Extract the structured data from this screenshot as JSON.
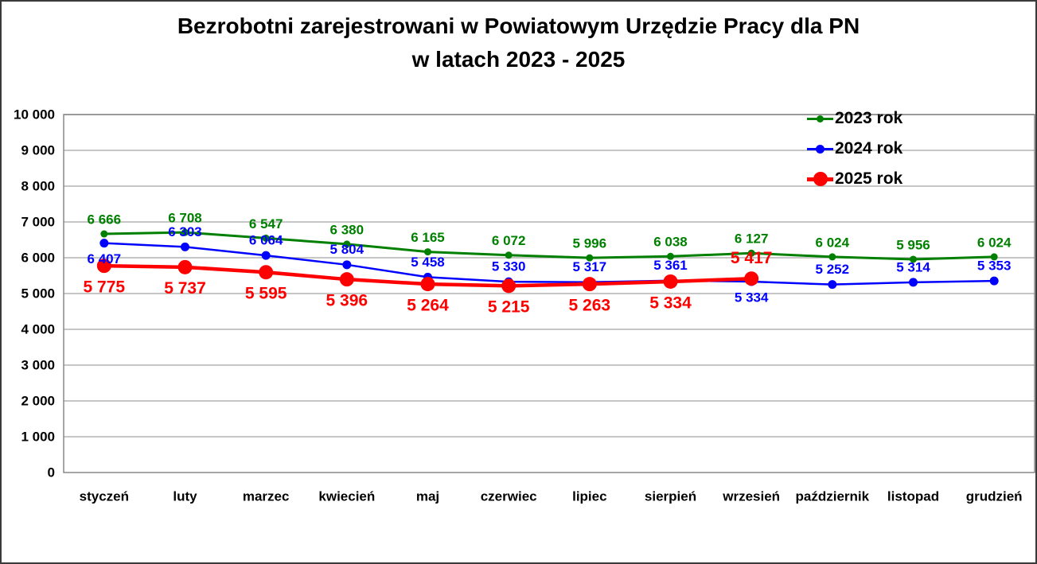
{
  "title": {
    "line1": "Bezrobotni zarejestrowani w Powiatowym Urzędzie Pracy dla PN",
    "line2": "w latach 2023 - 2025"
  },
  "colors": {
    "background": "#FFFFFF",
    "grid": "#B3B3B3",
    "plot_border": "#808080",
    "outer_border": "#3A3A3A",
    "text": "#000000"
  },
  "chart_data": {
    "type": "line",
    "title": "Bezrobotni zarejestrowani w Powiatowym Urzędzie Pracy dla PN w latach 2023 - 2025",
    "categories": [
      "styczeń",
      "luty",
      "marzec",
      "kwiecień",
      "maj",
      "czerwiec",
      "lipiec",
      "sierpień",
      "wrzesień",
      "październik",
      "listopad",
      "grudzień"
    ],
    "ylim": [
      0,
      10000
    ],
    "ytick_step": 1000,
    "grid": true,
    "legend_position": "top-right",
    "number_format": "space-thousands",
    "series": [
      {
        "name": "2023 rok",
        "color": "#008000",
        "line_width": 3,
        "marker_radius": 4.5,
        "label_size": 17,
        "values": [
          6666,
          6708,
          6547,
          6380,
          6165,
          6072,
          5996,
          6038,
          6127,
          6024,
          5956,
          6024
        ],
        "label_positions": [
          "above",
          "above",
          "above",
          "above",
          "above",
          "above",
          "above",
          "above",
          "above",
          "above",
          "above",
          "above"
        ]
      },
      {
        "name": "2024 rok",
        "color": "#0000FF",
        "line_width": 2.5,
        "marker_radius": 5.5,
        "label_size": 17,
        "values": [
          6407,
          6303,
          6064,
          5804,
          5458,
          5330,
          5317,
          5361,
          5334,
          5252,
          5314,
          5353
        ],
        "label_positions": [
          "below",
          "above",
          "above",
          "above",
          "above",
          "above",
          "above",
          "above",
          "below",
          "above",
          "above",
          "above"
        ]
      },
      {
        "name": "2025 rok",
        "color": "#FF0000",
        "line_width": 4.5,
        "marker_radius": 9,
        "label_size": 21,
        "values": [
          5775,
          5737,
          5595,
          5396,
          5264,
          5215,
          5263,
          5334,
          5417,
          null,
          null,
          null
        ],
        "label_positions": [
          "below",
          "below",
          "below",
          "below",
          "below",
          "below",
          "below",
          "below",
          "above"
        ]
      }
    ],
    "y_axis_labels": [
      "0",
      "1 000",
      "2 000",
      "3 000",
      "4 000",
      "5 000",
      "6 000",
      "7 000",
      "8 000",
      "9 000",
      "10 000"
    ]
  }
}
